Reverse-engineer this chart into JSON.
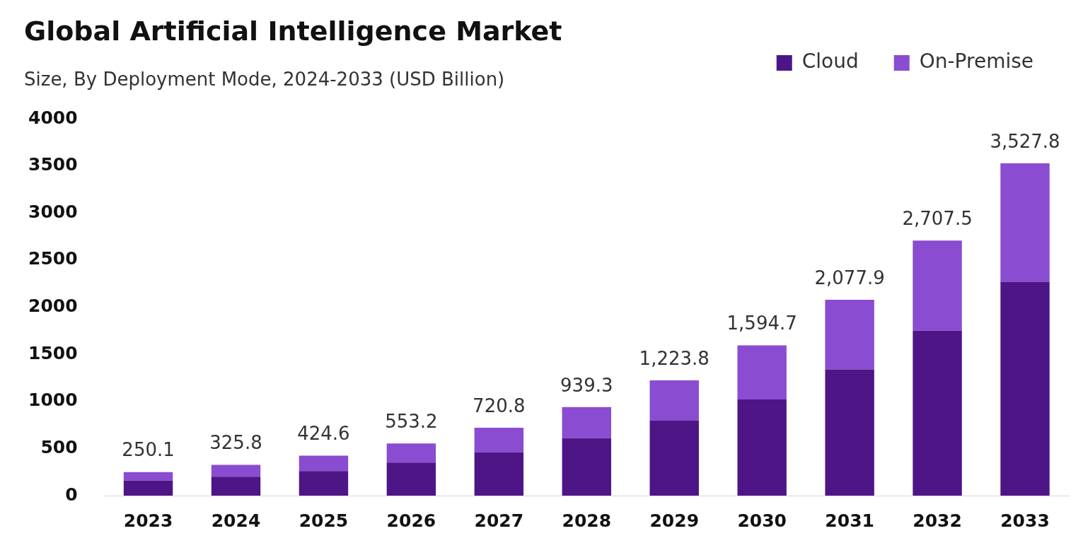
{
  "chart_data": {
    "type": "bar",
    "title": "Global Artificial Intelligence Market",
    "subtitle": "Size, By Deployment Mode, 2024-2033 (USD Billion)",
    "categories": [
      "2023",
      "2024",
      "2025",
      "2026",
      "2027",
      "2028",
      "2029",
      "2030",
      "2031",
      "2032",
      "2033"
    ],
    "series": [
      {
        "name": "Cloud",
        "color": "#4e1587",
        "values": [
          160,
          200,
          260,
          350,
          460,
          610,
          800,
          1020,
          1340,
          1750,
          2270
        ]
      },
      {
        "name": "On-Premise",
        "color": "#8a4cd0",
        "values": [
          90.1,
          125.8,
          164.6,
          203.2,
          260.8,
          329.3,
          423.8,
          574.7,
          737.9,
          957.5,
          1257.8
        ]
      }
    ],
    "stacked": true,
    "totals": [
      "250.1",
      "325.8",
      "424.6",
      "553.2",
      "720.8",
      "939.3",
      "1,223.8",
      "1,594.7",
      "2,077.9",
      "2,707.5",
      "3,527.8"
    ],
    "ylim": [
      0,
      4000
    ],
    "yticks": [
      0,
      500,
      1000,
      1500,
      2000,
      2500,
      3000,
      3500,
      4000
    ],
    "grid": false,
    "legend": "top right"
  }
}
